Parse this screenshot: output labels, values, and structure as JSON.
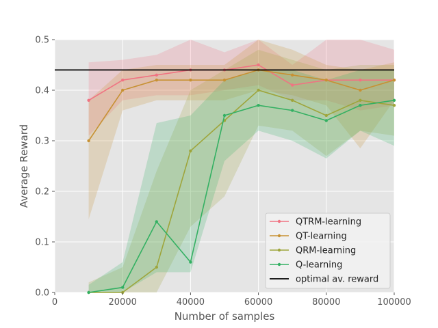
{
  "chart_data": {
    "type": "line",
    "xlabel": "Number of samples",
    "ylabel": "Average Reward",
    "xlim": [
      0,
      100000
    ],
    "ylim": [
      0,
      0.5
    ],
    "xticks": [
      0,
      20000,
      40000,
      60000,
      80000,
      100000
    ],
    "xtick_labels": [
      "0",
      "20000",
      "40000",
      "60000",
      "80000",
      "100000"
    ],
    "yticks": [
      0.0,
      0.1,
      0.2,
      0.3,
      0.4,
      0.5
    ],
    "ytick_labels": [
      "0.0",
      "0.1",
      "0.2",
      "0.3",
      "0.4",
      "0.5"
    ],
    "grid": true,
    "legend_position": "lower-right",
    "x": [
      10000,
      20000,
      30000,
      40000,
      50000,
      60000,
      70000,
      80000,
      90000,
      100000
    ],
    "series": [
      {
        "name": "QTRM-learning",
        "color": "#f07382",
        "values": [
          0.38,
          0.42,
          0.43,
          0.44,
          0.44,
          0.45,
          0.41,
          0.42,
          0.42,
          0.42
        ],
        "lower": [
          0.31,
          0.38,
          0.39,
          0.39,
          0.4,
          0.41,
          0.38,
          0.38,
          0.36,
          0.37
        ],
        "upper": [
          0.455,
          0.46,
          0.47,
          0.5,
          0.475,
          0.5,
          0.45,
          0.5,
          0.5,
          0.48
        ]
      },
      {
        "name": "QT-learning",
        "color": "#c79133",
        "values": [
          0.3,
          0.4,
          0.42,
          0.42,
          0.42,
          0.44,
          0.43,
          0.42,
          0.4,
          0.42
        ],
        "lower": [
          0.145,
          0.36,
          0.38,
          0.38,
          0.38,
          0.4,
          0.39,
          0.37,
          0.285,
          0.38
        ],
        "upper": [
          0.38,
          0.44,
          0.45,
          0.45,
          0.45,
          0.5,
          0.48,
          0.45,
          0.44,
          0.455
        ]
      },
      {
        "name": "QRM-learning",
        "color": "#9ea53b",
        "values": [
          0.0,
          0.0,
          0.05,
          0.28,
          0.34,
          0.4,
          0.38,
          0.35,
          0.38,
          0.37
        ],
        "lower": [
          0.0,
          0.0,
          0.0,
          0.13,
          0.19,
          0.33,
          0.32,
          0.27,
          0.32,
          0.31
        ],
        "upper": [
          0.02,
          0.05,
          0.24,
          0.4,
          0.44,
          0.48,
          0.46,
          0.44,
          0.45,
          0.45
        ]
      },
      {
        "name": "Q-learning",
        "color": "#33b062",
        "values": [
          0.0,
          0.01,
          0.14,
          0.06,
          0.35,
          0.37,
          0.36,
          0.34,
          0.37,
          0.38
        ],
        "lower": [
          0.0,
          0.0,
          0.04,
          0.04,
          0.26,
          0.32,
          0.3,
          0.265,
          0.32,
          0.29
        ],
        "upper": [
          0.015,
          0.06,
          0.335,
          0.35,
          0.42,
          0.44,
          0.44,
          0.42,
          0.44,
          0.44
        ]
      }
    ],
    "reference_line": {
      "name": "optimal av. reward",
      "value": 0.44,
      "color": "#000000"
    }
  }
}
